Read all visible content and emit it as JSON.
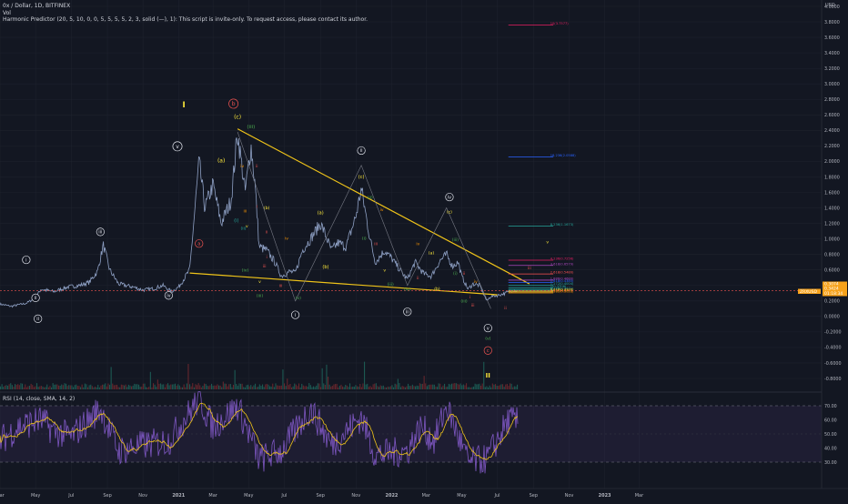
{
  "header": {
    "symbol_line": "0x / Dollar, 1D, BITFINEX",
    "vol_label": "Vol",
    "indicator_line": "Harmonic Predictor (20, 5, 10, 0, 0, 5, 5, 5, 5, 2, 3, solid (—), 1): This script is invite-only. To request access, please contact its author.",
    "rsi_line": "RSI (14, close, SMA, 14, 2)"
  },
  "currency_label": "USD",
  "price_axis_ticks": [
    "4.0000",
    "3.8000",
    "3.6000",
    "3.4000",
    "3.2000",
    "3.0000",
    "2.8000",
    "2.6000",
    "2.4000",
    "2.2000",
    "2.0000",
    "1.8000",
    "1.6000",
    "1.4000",
    "1.2000",
    "1.0000",
    "0.8000",
    "0.6000",
    "0.4000",
    "0.2000",
    "0.0000",
    "-0.2000",
    "-0.4000",
    "-0.6000",
    "-0.8000"
  ],
  "rsi_axis_ticks": [
    "70.00",
    "60.00",
    "50.00",
    "40.00",
    "30.00"
  ],
  "time_axis_labels": [
    "Mar",
    "May",
    "Jul",
    "Sep",
    "Nov",
    "2021",
    "Mar",
    "May",
    "Jul",
    "Sep",
    "Nov",
    "2022",
    "Mar",
    "May",
    "Jul",
    "Sep",
    "Nov",
    "2023",
    "Mar"
  ],
  "price_tags": [
    {
      "text": "0.3074",
      "color": "#f7a21b"
    },
    {
      "text": "0.3424",
      "color": "#f7a21b"
    },
    {
      "text": "01:18:34",
      "color": "#f7a21b"
    },
    {
      "text": "ZRXUSD",
      "color": "#f7a21b"
    }
  ],
  "fib_labels": [
    {
      "text": "10(3.7577)",
      "color": "#e91e63"
    },
    {
      "text": "16.236(2.0588)",
      "color": "#2962ff"
    },
    {
      "text": "8.236(1.1673)",
      "color": "#26a69a"
    },
    {
      "text": "4.236(0.7256)",
      "color": "#e91e63"
    },
    {
      "text": "3.618(0.6579)",
      "color": "#ab47bc"
    },
    {
      "text": "2.618(0.5480)",
      "color": "#ff5252"
    },
    {
      "text": "1.886(0.4680)",
      "color": "#ab47bc"
    },
    {
      "text": "1.618(0.4385)",
      "color": "#2962ff"
    },
    {
      "text": "1.272(0.4004)",
      "color": "#26a69a"
    },
    {
      "text": "1(0.3706)",
      "color": "#26a69a"
    },
    {
      "text": "0.786(0.3471)",
      "color": "#26a69a"
    },
    {
      "text": "0.618(0.3286)",
      "color": "#ffeb3b"
    },
    {
      "text": "0.5(0.3157)",
      "color": "#ff9800"
    },
    {
      "text": "0.382(0.3028)",
      "color": "#ff9800"
    }
  ],
  "wave_labels": [
    {
      "text": "I",
      "color": "#ffeb3b",
      "circled": false
    },
    {
      "text": "b",
      "color": "#ef5350",
      "circled": true
    },
    {
      "text": "(c)",
      "color": "#ffeb3b",
      "circled": false
    },
    {
      "text": "(iii)",
      "color": "#4caf50",
      "circled": false
    },
    {
      "text": "v",
      "color": "#e0e3eb",
      "circled": true
    },
    {
      "text": "(a)",
      "color": "#ffeb3b",
      "circled": false
    },
    {
      "text": "(i)",
      "color": "#26a69a",
      "circled": false
    },
    {
      "text": "iv",
      "color": "#ff9800",
      "circled": false
    },
    {
      "text": "ii",
      "color": "#ef5350",
      "circled": false
    },
    {
      "text": "iii",
      "color": "#ff9800",
      "circled": false
    },
    {
      "text": "i",
      "color": "#ef5350",
      "circled": false
    },
    {
      "text": "(ii)",
      "color": "#26a69a",
      "circled": false
    },
    {
      "text": "v",
      "color": "#ffeb3b",
      "circled": false
    },
    {
      "text": "(iv)",
      "color": "#4caf50",
      "circled": false
    },
    {
      "text": "(b)",
      "color": "#ffeb3b",
      "circled": false
    },
    {
      "text": "a",
      "color": "#ef5350",
      "circled": true
    },
    {
      "text": "iii",
      "color": "#e0e3eb",
      "circled": true
    },
    {
      "text": "i",
      "color": "#e0e3eb",
      "circled": true
    },
    {
      "text": "ii",
      "color": "#e0e3eb",
      "circled": true
    },
    {
      "text": "iv",
      "color": "#e0e3eb",
      "circled": true
    },
    {
      "text": "ii",
      "color": "#ef5350",
      "circled": false
    },
    {
      "text": "iv",
      "color": "#ff9800",
      "circled": false
    },
    {
      "text": "i",
      "color": "#ef5350",
      "circled": false
    },
    {
      "text": "iii",
      "color": "#ef5350",
      "circled": false
    },
    {
      "text": "v",
      "color": "#ffeb3b",
      "circled": false
    },
    {
      "text": "iii",
      "color": "#ef5350",
      "circled": false
    },
    {
      "text": "(iii)",
      "color": "#4caf50",
      "circled": false
    },
    {
      "text": "(v)",
      "color": "#4caf50",
      "circled": false
    },
    {
      "text": "i",
      "color": "#e0e3eb",
      "circled": true
    },
    {
      "text": "(a)",
      "color": "#ffeb3b",
      "circled": false
    },
    {
      "text": "(b)",
      "color": "#ffeb3b",
      "circled": false
    },
    {
      "text": "ii",
      "color": "#e0e3eb",
      "circled": true
    },
    {
      "text": "(c)",
      "color": "#ffeb3b",
      "circled": false
    },
    {
      "text": "(ii)",
      "color": "#4caf50",
      "circled": false
    },
    {
      "text": "(i)",
      "color": "#4caf50",
      "circled": false
    },
    {
      "text": "iii",
      "color": "#ef5350",
      "circled": false
    },
    {
      "text": "iv",
      "color": "#ff9800",
      "circled": false
    },
    {
      "text": "v",
      "color": "#ffeb3b",
      "circled": false
    },
    {
      "text": "(iii)",
      "color": "#4caf50",
      "circled": false
    },
    {
      "text": "iii",
      "color": "#e0e3eb",
      "circled": true
    },
    {
      "text": "(iv)",
      "color": "#4caf50",
      "circled": false
    },
    {
      "text": "iv",
      "color": "#ff9800",
      "circled": false
    },
    {
      "text": "ii",
      "color": "#ef5350",
      "circled": false
    },
    {
      "text": "(a)",
      "color": "#ffeb3b",
      "circled": false
    },
    {
      "text": "(b)",
      "color": "#ffeb3b",
      "circled": false
    },
    {
      "text": "iv",
      "color": "#e0e3eb",
      "circled": true
    },
    {
      "text": "(c)",
      "color": "#ffeb3b",
      "circled": false
    },
    {
      "text": "(iii)",
      "color": "#4caf50",
      "circled": false
    },
    {
      "text": "(i)",
      "color": "#4caf50",
      "circled": false
    },
    {
      "text": "ii",
      "color": "#ef5350",
      "circled": false
    },
    {
      "text": "(iii)",
      "color": "#4caf50",
      "circled": false
    },
    {
      "text": "iv",
      "color": "#ff9800",
      "circled": false
    },
    {
      "text": "i",
      "color": "#ef5350",
      "circled": false
    },
    {
      "text": "iii",
      "color": "#ef5350",
      "circled": false
    },
    {
      "text": "v",
      "color": "#e0e3eb",
      "circled": true
    },
    {
      "text": "(v)",
      "color": "#4caf50",
      "circled": false
    },
    {
      "text": "c",
      "color": "#ef5350",
      "circled": true
    },
    {
      "text": "II",
      "color": "#ffeb3b",
      "circled": false
    },
    {
      "text": "ii",
      "color": "#ef5350",
      "circled": false
    },
    {
      "text": "iii",
      "color": "#ef5350",
      "circled": false
    },
    {
      "text": "v",
      "color": "#ffeb3b",
      "circled": false
    },
    {
      "text": "ii",
      "color": "#e0e3eb",
      "circled": true
    }
  ],
  "chart_data": {
    "type": "line",
    "price_range": [
      -0.9,
      4.1
    ],
    "rsi_range": [
      20,
      80
    ],
    "rsi_bands": [
      30,
      70
    ],
    "price_keypoints": [
      [
        "2020-03-01",
        0.16
      ],
      [
        "2020-03-20",
        0.13
      ],
      [
        "2020-04-15",
        0.17
      ],
      [
        "2020-05-01",
        0.24
      ],
      [
        "2020-05-10",
        0.35
      ],
      [
        "2020-06-01",
        0.32
      ],
      [
        "2020-06-25",
        0.38
      ],
      [
        "2020-07-15",
        0.4
      ],
      [
        "2020-08-01",
        0.44
      ],
      [
        "2020-08-15",
        0.58
      ],
      [
        "2020-08-25",
        0.92
      ],
      [
        "2020-09-05",
        0.6
      ],
      [
        "2020-09-20",
        0.42
      ],
      [
        "2020-10-15",
        0.38
      ],
      [
        "2020-11-01",
        0.34
      ],
      [
        "2020-11-20",
        0.36
      ],
      [
        "2020-12-05",
        0.4
      ],
      [
        "2020-12-20",
        0.32
      ],
      [
        "2021-01-01",
        0.38
      ],
      [
        "2021-01-20",
        0.6
      ],
      [
        "2021-02-05",
        2.0
      ],
      [
        "2021-02-15",
        1.4
      ],
      [
        "2021-03-01",
        1.7
      ],
      [
        "2021-03-15",
        1.2
      ],
      [
        "2021-04-01",
        1.5
      ],
      [
        "2021-04-12",
        2.38
      ],
      [
        "2021-04-25",
        1.6
      ],
      [
        "2021-05-05",
        2.2
      ],
      [
        "2021-05-12",
        1.7
      ],
      [
        "2021-05-19",
        0.9
      ],
      [
        "2021-06-01",
        0.85
      ],
      [
        "2021-06-15",
        0.7
      ],
      [
        "2021-06-26",
        0.52
      ],
      [
        "2021-07-10",
        0.58
      ],
      [
        "2021-07-20",
        0.56
      ],
      [
        "2021-08-01",
        0.85
      ],
      [
        "2021-08-15",
        1.0
      ],
      [
        "2021-09-01",
        1.2
      ],
      [
        "2021-09-07",
        1.1
      ],
      [
        "2021-09-20",
        0.85
      ],
      [
        "2021-10-01",
        0.95
      ],
      [
        "2021-10-15",
        0.9
      ],
      [
        "2021-11-01",
        1.3
      ],
      [
        "2021-11-10",
        1.65
      ],
      [
        "2021-11-25",
        1.0
      ],
      [
        "2021-12-04",
        0.7
      ],
      [
        "2021-12-20",
        0.85
      ],
      [
        "2022-01-01",
        0.75
      ],
      [
        "2022-01-20",
        0.55
      ],
      [
        "2022-01-28",
        0.48
      ],
      [
        "2022-02-10",
        0.7
      ],
      [
        "2022-02-25",
        0.55
      ],
      [
        "2022-03-10",
        0.52
      ],
      [
        "2022-03-25",
        0.72
      ],
      [
        "2022-04-05",
        0.8
      ],
      [
        "2022-04-15",
        0.65
      ],
      [
        "2022-04-25",
        0.7
      ],
      [
        "2022-05-01",
        0.52
      ],
      [
        "2022-05-12",
        0.35
      ],
      [
        "2022-05-20",
        0.42
      ],
      [
        "2022-06-01",
        0.4
      ],
      [
        "2022-06-13",
        0.2
      ],
      [
        "2022-06-20",
        0.26
      ],
      [
        "2022-07-01",
        0.27
      ],
      [
        "2022-07-15",
        0.3
      ],
      [
        "2022-07-28",
        0.34
      ],
      [
        "2022-08-05",
        0.33
      ]
    ],
    "rsi_keypoints": [
      [
        "2020-03-01",
        45
      ],
      [
        "2020-04-01",
        55
      ],
      [
        "2020-05-10",
        60
      ],
      [
        "2020-06-01",
        52
      ],
      [
        "2020-07-01",
        48
      ],
      [
        "2020-08-20",
        68
      ],
      [
        "2020-09-20",
        38
      ],
      [
        "2020-11-01",
        42
      ],
      [
        "2020-12-15",
        45
      ],
      [
        "2021-02-05",
        75
      ],
      [
        "2021-03-01",
        55
      ],
      [
        "2021-04-12",
        70
      ],
      [
        "2021-05-19",
        32
      ],
      [
        "2021-06-26",
        38
      ],
      [
        "2021-08-15",
        68
      ],
      [
        "2021-09-20",
        42
      ],
      [
        "2021-11-10",
        62
      ],
      [
        "2021-12-04",
        35
      ],
      [
        "2022-01-28",
        38
      ],
      [
        "2022-02-20",
        55
      ],
      [
        "2022-03-15",
        45
      ],
      [
        "2022-04-05",
        70
      ],
      [
        "2022-05-12",
        30
      ],
      [
        "2022-06-13",
        32
      ],
      [
        "2022-07-20",
        60
      ],
      [
        "2022-08-05",
        58
      ]
    ],
    "fib_levels": [
      3.7577,
      2.0588,
      1.1673,
      0.7256,
      0.6579,
      0.548,
      0.468,
      0.4385,
      0.4004,
      0.3706,
      0.3471,
      0.3286,
      0.3157,
      0.3028
    ],
    "trendlines": [
      {
        "from": [
          "2021-04-12",
          2.42
        ],
        "to": [
          "2022-08-25",
          0.42
        ],
        "color": "#f0c419"
      },
      {
        "from": [
          "2021-01-20",
          0.56
        ],
        "to": [
          "2022-07-01",
          0.28
        ],
        "color": "#f0c419"
      }
    ]
  }
}
